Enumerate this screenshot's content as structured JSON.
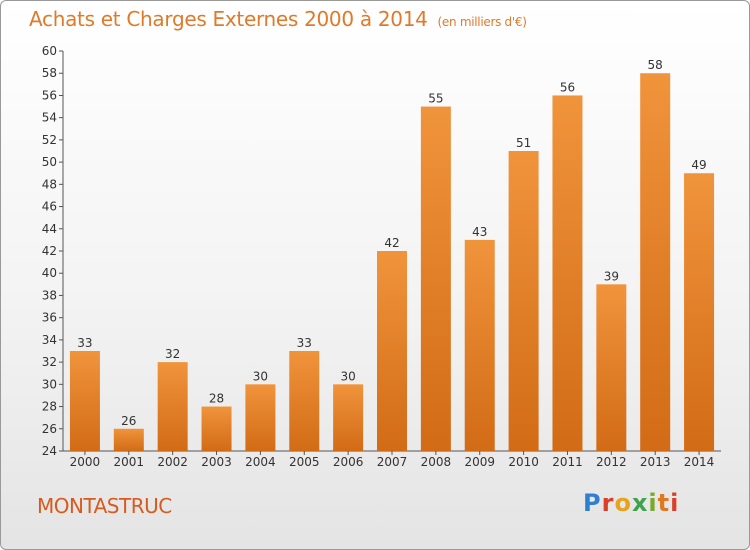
{
  "chart_data": {
    "type": "bar",
    "title": "Achats et Charges Externes 2000 à 2014",
    "subtitle": "(en milliers d'€)",
    "categories": [
      "2000",
      "2001",
      "2002",
      "2003",
      "2004",
      "2005",
      "2006",
      "2007",
      "2008",
      "2009",
      "2010",
      "2011",
      "2012",
      "2013",
      "2014"
    ],
    "values": [
      33,
      26,
      32,
      28,
      30,
      33,
      30,
      42,
      55,
      43,
      51,
      56,
      39,
      58,
      49
    ],
    "ylim": [
      24,
      60
    ],
    "yticks": [
      24,
      26,
      28,
      30,
      32,
      34,
      36,
      38,
      40,
      42,
      44,
      46,
      48,
      50,
      52,
      54,
      56,
      58,
      60
    ],
    "grid": false,
    "bar_color": "#f0943c",
    "bar_color_dark": "#d26b16"
  },
  "location": "MONTASTRUC",
  "logo": {
    "text": "Proxiti",
    "letters": [
      "P",
      "r",
      "o",
      "x",
      "i",
      "t",
      "i"
    ]
  }
}
